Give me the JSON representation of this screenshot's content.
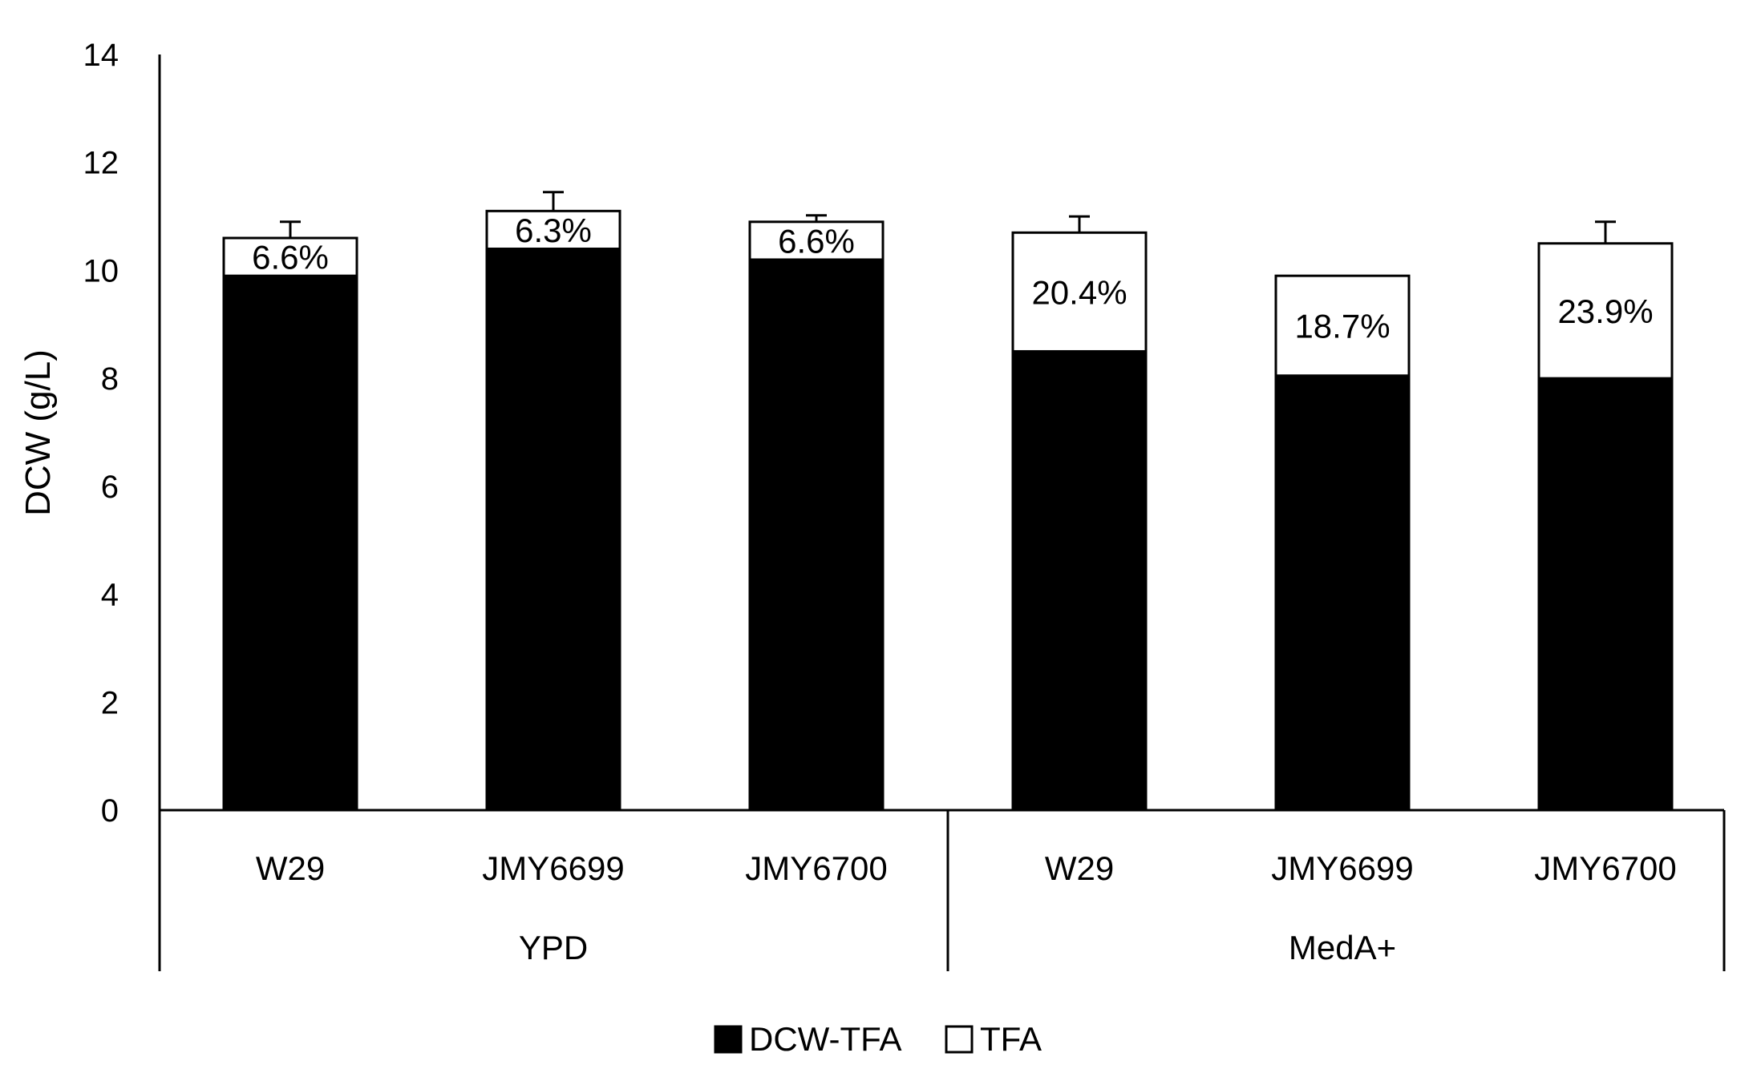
{
  "chart_data": {
    "type": "bar",
    "stacked": true,
    "ylabel": "DCW (g/L)",
    "ylim": [
      0,
      14
    ],
    "yticks": [
      0,
      2,
      4,
      6,
      8,
      10,
      12,
      14
    ],
    "groups": [
      {
        "name": "YPD",
        "categories": [
          "W29",
          "JMY6699",
          "JMY6700"
        ]
      },
      {
        "name": "MedA+",
        "categories": [
          "W29",
          "JMY6699",
          "JMY6700"
        ]
      }
    ],
    "categories": [
      "W29",
      "JMY6699",
      "JMY6700",
      "W29",
      "JMY6699",
      "JMY6700"
    ],
    "series": [
      {
        "name": "DCW-TFA",
        "color": "#000000",
        "values": [
          9.9,
          10.4,
          10.2,
          8.5,
          8.05,
          8.0
        ]
      },
      {
        "name": "TFA",
        "color": "#ffffff",
        "values": [
          0.7,
          0.7,
          0.7,
          2.2,
          1.85,
          2.5
        ]
      }
    ],
    "error_bars": [
      0.3,
      0.35,
      0.12,
      0.3,
      0.0,
      0.4
    ],
    "data_labels": [
      "6.6%",
      "6.3%",
      "6.6%",
      "20.4%",
      "18.7%",
      "23.9%"
    ],
    "legend": {
      "position": "bottom",
      "entries": [
        "DCW-TFA",
        "TFA"
      ]
    }
  }
}
